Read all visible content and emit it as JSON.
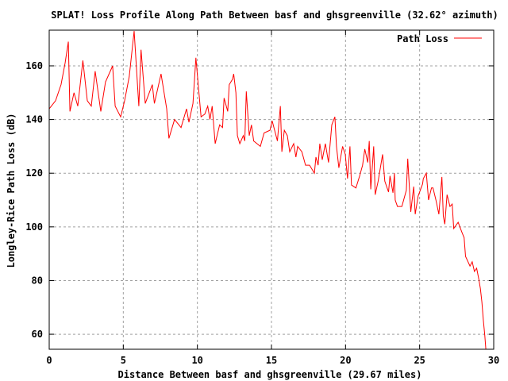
{
  "chart_data": {
    "type": "line",
    "title": "SPLAT! Loss Profile Along Path Between basf and ghsgreenville (32.62° azimuth)",
    "xlabel": "Distance Between basf and ghsgreenville (29.67 miles)",
    "ylabel": "Longley-Rice Path Loss (dB)",
    "xlim": [
      0,
      30
    ],
    "ylim": [
      54.4,
      173.3
    ],
    "xticks": [
      0,
      5,
      10,
      15,
      20,
      25,
      30
    ],
    "yticks": [
      60,
      80,
      100,
      120,
      140,
      160
    ],
    "grid": true,
    "legend_position": "top-right",
    "series": [
      {
        "name": "Path Loss",
        "color": "#ff0000",
        "x": [
          0,
          0.43,
          0.8,
          1.07,
          1.29,
          1.4,
          1.67,
          1.93,
          2.27,
          2.57,
          2.84,
          3.1,
          3.48,
          3.8,
          4.28,
          4.45,
          4.82,
          5.09,
          5.4,
          5.73,
          6.05,
          6.2,
          6.48,
          6.96,
          7.1,
          7.55,
          7.93,
          8.08,
          8.46,
          8.9,
          9.27,
          9.43,
          9.7,
          9.9,
          10.17,
          10.25,
          10.5,
          10.7,
          10.85,
          11.0,
          11.2,
          11.5,
          11.7,
          11.8,
          12.05,
          12.15,
          12.37,
          12.45,
          12.6,
          12.7,
          12.86,
          13.1,
          13.2,
          13.3,
          13.5,
          13.65,
          13.8,
          14.25,
          14.5,
          14.9,
          15.05,
          15.4,
          15.6,
          15.7,
          15.87,
          16.07,
          16.23,
          16.5,
          16.65,
          16.77,
          17.05,
          17.3,
          17.57,
          17.9,
          18.0,
          18.15,
          18.26,
          18.43,
          18.64,
          18.85,
          19.07,
          19.28,
          19.39,
          19.55,
          19.8,
          19.98,
          20.13,
          20.3,
          20.4,
          20.7,
          20.95,
          21.15,
          21.3,
          21.5,
          21.6,
          21.7,
          21.9,
          22.0,
          22.2,
          22.5,
          22.65,
          22.9,
          23.0,
          23.2,
          23.3,
          23.35,
          23.5,
          23.8,
          24.1,
          24.2,
          24.4,
          24.6,
          24.7,
          24.9,
          25.2,
          25.25,
          25.45,
          25.6,
          25.8,
          25.9,
          26.1,
          26.3,
          26.5,
          26.6,
          26.7,
          26.85,
          27.05,
          27.2,
          27.3,
          27.6,
          27.85,
          28.0,
          28.1,
          28.4,
          28.55,
          28.7,
          28.85,
          29.0,
          29.1,
          29.2,
          29.3,
          29.4,
          29.47,
          29.67
        ],
        "y": [
          144,
          147,
          153,
          161,
          169,
          143,
          150,
          145,
          162,
          147,
          145,
          158,
          143,
          154,
          160,
          145,
          141,
          147,
          156,
          173,
          145,
          166,
          146,
          153,
          146,
          157,
          144,
          133,
          140,
          137,
          144,
          139,
          146,
          163,
          146,
          141,
          142,
          145,
          140,
          145,
          131,
          138,
          137,
          148,
          143,
          153,
          155,
          157,
          150,
          134,
          131,
          134,
          132,
          150.5,
          134,
          138,
          132,
          130,
          135,
          136,
          139.5,
          132,
          145,
          128,
          136,
          134,
          128,
          131,
          126,
          130,
          128,
          123,
          123,
          120,
          126,
          123,
          131,
          125,
          131,
          124,
          138,
          141,
          130,
          122,
          130,
          127,
          118,
          130,
          115.6,
          114.5,
          119,
          123,
          129,
          124,
          132,
          114,
          130,
          112,
          117,
          127,
          117,
          113,
          119,
          112.7,
          120,
          110,
          107.6,
          107.6,
          113.6,
          125.4,
          105.6,
          115,
          104.7,
          111.5,
          116,
          118,
          120,
          110,
          114.5,
          114.5,
          110,
          104.7,
          118.6,
          104,
          101,
          112,
          107.6,
          108.5,
          99.4,
          101.7,
          98,
          96,
          89,
          85.4,
          87,
          83.4,
          84.6,
          80.4,
          77,
          72,
          65.3,
          59.4,
          54.4,
          48
        ]
      }
    ]
  }
}
